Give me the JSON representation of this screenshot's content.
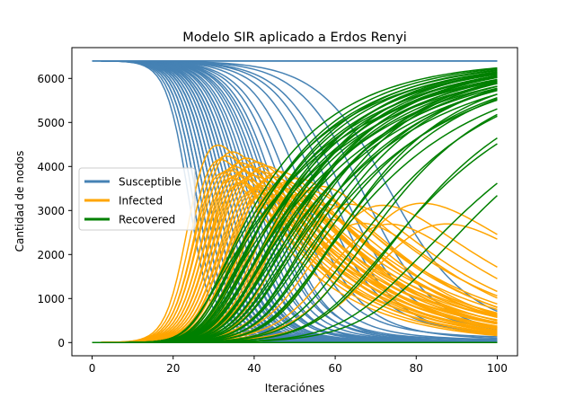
{
  "chart_data": {
    "type": "line",
    "title": "Modelo SIR aplicado a Erdos Renyi",
    "xlabel": "Iteraciónes",
    "ylabel": "Cantidad de nodos",
    "xlim": [
      -5,
      105
    ],
    "ylim": [
      -300,
      6700
    ],
    "xticks": [
      "0",
      "20",
      "40",
      "60",
      "80",
      "100"
    ],
    "yticks": [
      "0",
      "1000",
      "2000",
      "3000",
      "4000",
      "5000",
      "6000"
    ],
    "total_nodes": 6400,
    "grid": false,
    "legend": {
      "placement": "center-left",
      "entries": [
        {
          "label": "Susceptible",
          "color": "#4682b4"
        },
        {
          "label": "Infected",
          "color": "#ffa500"
        },
        {
          "label": "Recovered",
          "color": "#008000"
        }
      ]
    },
    "series": [
      {
        "name": "Susceptible",
        "color": "#4682b4",
        "x": [
          0,
          10,
          20,
          25,
          30,
          35,
          40,
          45,
          50,
          55,
          60,
          65,
          70,
          80,
          90,
          100
        ],
        "values": [
          6400,
          6380,
          6000,
          5100,
          3700,
          2200,
          1200,
          600,
          300,
          150,
          80,
          50,
          30,
          15,
          10,
          8
        ]
      },
      {
        "name": "Infected",
        "color": "#ffa500",
        "x": [
          0,
          10,
          20,
          25,
          30,
          35,
          40,
          45,
          50,
          55,
          60,
          70,
          80,
          90,
          100
        ],
        "values": [
          0,
          20,
          380,
          1200,
          2400,
          3300,
          3400,
          3100,
          2700,
          2300,
          1900,
          1300,
          800,
          500,
          280
        ]
      },
      {
        "name": "Recovered",
        "color": "#008000",
        "x": [
          0,
          10,
          20,
          25,
          30,
          35,
          40,
          45,
          50,
          55,
          60,
          70,
          80,
          90,
          100
        ],
        "values": [
          0,
          0,
          20,
          100,
          300,
          900,
          1800,
          2700,
          3400,
          3950,
          4400,
          5100,
          5600,
          5900,
          6100
        ]
      }
    ],
    "runs": {
      "susceptible_midpoints": [
        24,
        25,
        26,
        26,
        27,
        27,
        28,
        28,
        29,
        29,
        30,
        30,
        30,
        31,
        31,
        32,
        32,
        33,
        33,
        34,
        34,
        35,
        35,
        36,
        36,
        37,
        38,
        38,
        39,
        40,
        41,
        42,
        43,
        44,
        45,
        46,
        48,
        50,
        53,
        57,
        60,
        63,
        68,
        75
      ],
      "susceptible_flat_runs": 3,
      "late_infected_peaks": [
        [
          70,
          3300
        ],
        [
          80,
          3300
        ]
      ],
      "late_recovered_final": [
        5300,
        4650
      ]
    }
  }
}
